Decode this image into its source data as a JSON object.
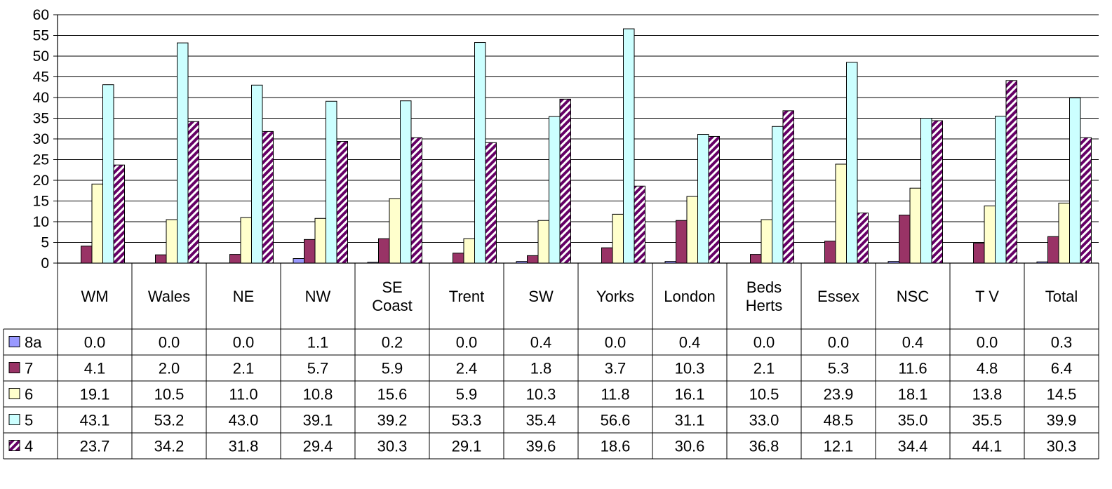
{
  "chart_data": {
    "type": "bar",
    "title": "",
    "xlabel": "",
    "ylabel": "",
    "ylim": [
      0,
      60
    ],
    "ytick_step": 5,
    "grid": true,
    "legend": "data-table",
    "categories": [
      [
        "WM"
      ],
      [
        "Wales"
      ],
      [
        "NE"
      ],
      [
        "NW"
      ],
      [
        "SE",
        "Coast"
      ],
      [
        "Trent"
      ],
      [
        "SW"
      ],
      [
        "Yorks"
      ],
      [
        "London"
      ],
      [
        "Beds",
        "Herts"
      ],
      [
        "Essex"
      ],
      [
        "NSC"
      ],
      [
        "T V"
      ],
      [
        "Total"
      ]
    ],
    "series": [
      {
        "name": "8a",
        "color": "#9999ff",
        "pattern": "solid",
        "values": [
          0.0,
          0.0,
          0.0,
          1.1,
          0.2,
          0.0,
          0.4,
          0.0,
          0.4,
          0.0,
          0.0,
          0.4,
          0.0,
          0.3
        ]
      },
      {
        "name": "7",
        "color": "#993366",
        "pattern": "solid",
        "values": [
          4.1,
          2.0,
          2.1,
          5.7,
          5.9,
          2.4,
          1.8,
          3.7,
          10.3,
          2.1,
          5.3,
          11.6,
          4.8,
          6.4
        ]
      },
      {
        "name": "6",
        "color": "#ffffcc",
        "pattern": "solid",
        "values": [
          19.1,
          10.5,
          11.0,
          10.8,
          15.6,
          5.9,
          10.3,
          11.8,
          16.1,
          10.5,
          23.9,
          18.1,
          13.8,
          14.5
        ]
      },
      {
        "name": "5",
        "color": "#ccffff",
        "pattern": "solid",
        "values": [
          43.1,
          53.2,
          43.0,
          39.1,
          39.2,
          53.3,
          35.4,
          56.6,
          31.1,
          33.0,
          48.5,
          35.0,
          35.5,
          39.9
        ]
      },
      {
        "name": "4",
        "color": "#660066",
        "pattern": "diagonal-stripes",
        "values": [
          23.7,
          34.2,
          31.8,
          29.4,
          30.3,
          29.1,
          39.6,
          18.6,
          30.6,
          36.8,
          12.1,
          34.4,
          44.1,
          30.3
        ]
      }
    ]
  }
}
